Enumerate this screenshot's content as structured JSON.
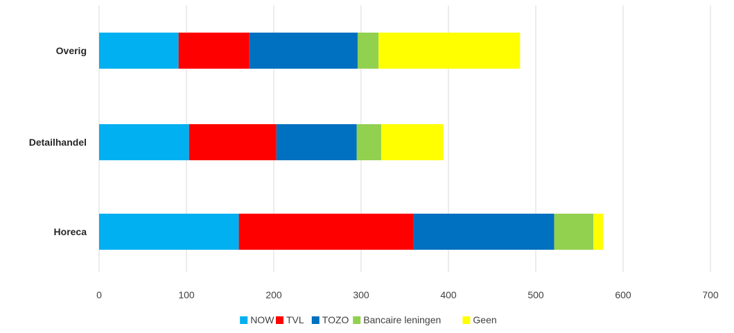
{
  "chart_data": {
    "type": "bar",
    "orientation": "horizontal",
    "stacked": true,
    "categories": [
      "Overig",
      "Detailhandel",
      "Horeca"
    ],
    "series": [
      {
        "name": "NOW",
        "color": "#00B0F0",
        "values": [
          91,
          103,
          160
        ]
      },
      {
        "name": "TVL",
        "color": "#FF0000",
        "values": [
          81,
          100,
          200
        ]
      },
      {
        "name": "TOZO",
        "color": "#0070C0",
        "values": [
          124,
          92,
          161
        ]
      },
      {
        "name": "Bancaire leningen",
        "color": "#92D050",
        "values": [
          24,
          28,
          45
        ]
      },
      {
        "name": "Geen",
        "color": "#FFFF00",
        "values": [
          162,
          71,
          11
        ]
      }
    ],
    "xlim": [
      0,
      700
    ],
    "xticks": [
      "0",
      "100",
      "200",
      "300",
      "400",
      "500",
      "600",
      "700"
    ],
    "grid": true,
    "legend_position": "bottom"
  }
}
